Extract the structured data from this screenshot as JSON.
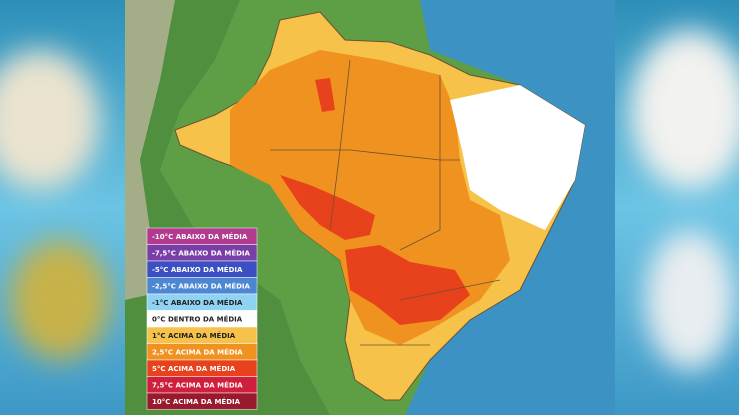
{
  "legend": {
    "items": [
      {
        "label": "-10°C ABAIXO DA MÉDIA",
        "color": "#b23a8f"
      },
      {
        "label": "-7,5°C ABAIXO DA MÉDIA",
        "color": "#7a3fa6"
      },
      {
        "label": "-5°C ABAIXO DA MÉDIA",
        "color": "#3b4fc2"
      },
      {
        "label": "-2,5°C ABAIXO DA MÉDIA",
        "color": "#4d86d3"
      },
      {
        "label": "-1°C ABAIXO DA MÉDIA",
        "color": "#8fd2f2"
      },
      {
        "label": "0°C DENTRO DA MÉDIA",
        "color": "#ffffff"
      },
      {
        "label": "1°C ACIMA DA MÉDIA",
        "color": "#f7c24a"
      },
      {
        "label": "2,5°C ACIMA DA MÉDIA",
        "color": "#f0921f"
      },
      {
        "label": "5°C ACIMA DA MÉDIA",
        "color": "#e8421d"
      },
      {
        "label": "7,5°C ACIMA DA MÉDIA",
        "color": "#cf1f3c"
      },
      {
        "label": "10°C ACIMA DA MÉDIA",
        "color": "#991a2d"
      }
    ]
  }
}
